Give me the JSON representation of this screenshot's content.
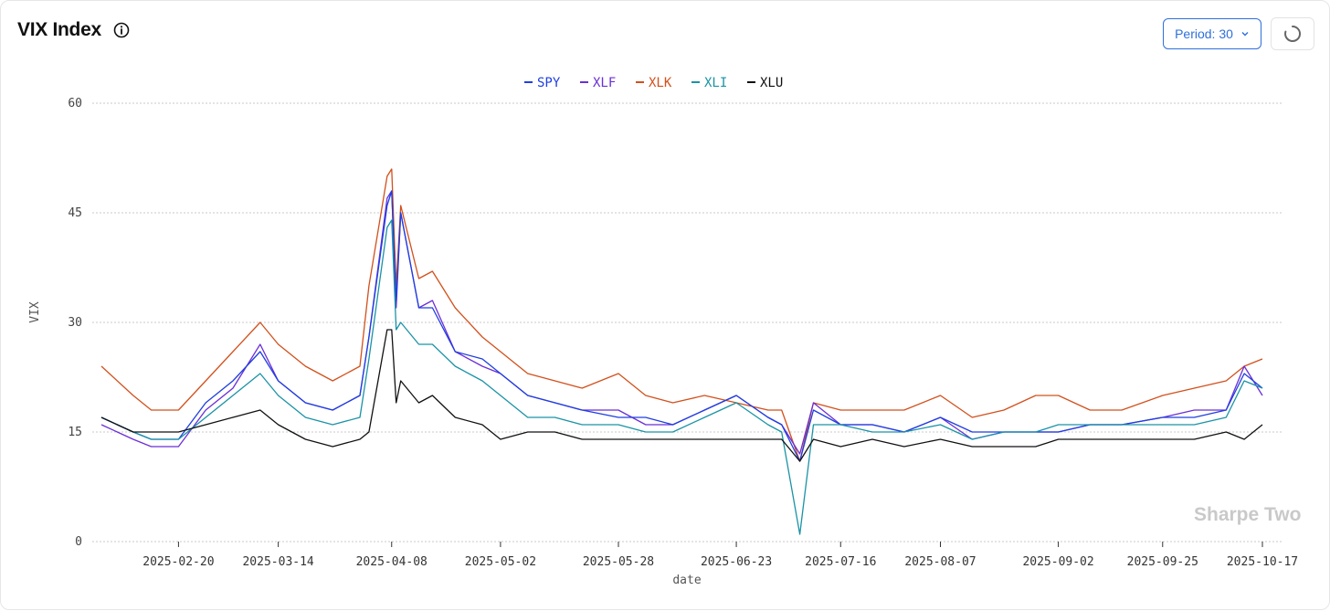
{
  "header": {
    "title": "VIX Index"
  },
  "controls": {
    "period_label": "Period: 30"
  },
  "watermark": "Sharpe Two",
  "colors": {
    "SPY": "#1f3fe0",
    "XLF": "#6b2fd6",
    "XLK": "#d2501c",
    "XLI": "#1a93a6",
    "XLU": "#111111",
    "accent": "#2f6fdc"
  },
  "chart_data": {
    "type": "line",
    "title": "VIX Index",
    "xlabel": "date",
    "ylabel": "VIX",
    "ylim": [
      0,
      60
    ],
    "yticks": [
      0,
      15,
      30,
      45,
      60
    ],
    "grid": true,
    "legend": "top-center",
    "x_ticks": [
      "2025-02-20",
      "2025-03-14",
      "2025-04-08",
      "2025-05-02",
      "2025-05-28",
      "2025-06-23",
      "2025-07-16",
      "2025-08-07",
      "2025-09-02",
      "2025-09-25",
      "2025-10-17"
    ],
    "x": [
      "2025-02-03",
      "2025-02-10",
      "2025-02-14",
      "2025-02-20",
      "2025-02-26",
      "2025-03-04",
      "2025-03-10",
      "2025-03-14",
      "2025-03-20",
      "2025-03-26",
      "2025-04-01",
      "2025-04-03",
      "2025-04-07",
      "2025-04-08",
      "2025-04-09",
      "2025-04-10",
      "2025-04-14",
      "2025-04-17",
      "2025-04-22",
      "2025-04-28",
      "2025-05-02",
      "2025-05-08",
      "2025-05-14",
      "2025-05-20",
      "2025-05-28",
      "2025-06-03",
      "2025-06-09",
      "2025-06-16",
      "2025-06-23",
      "2025-06-30",
      "2025-07-03",
      "2025-07-07",
      "2025-07-10",
      "2025-07-16",
      "2025-07-23",
      "2025-07-30",
      "2025-08-07",
      "2025-08-14",
      "2025-08-21",
      "2025-08-28",
      "2025-09-02",
      "2025-09-09",
      "2025-09-16",
      "2025-09-25",
      "2025-10-02",
      "2025-10-09",
      "2025-10-13",
      "2025-10-17"
    ],
    "series": [
      {
        "name": "SPY",
        "values": [
          17,
          15,
          14,
          14,
          19,
          22,
          26,
          22,
          19,
          18,
          20,
          28,
          46,
          48,
          33,
          45,
          32,
          32,
          26,
          25,
          23,
          20,
          19,
          18,
          17,
          17,
          16,
          18,
          20,
          17,
          16,
          11,
          18,
          16,
          16,
          15,
          17,
          15,
          15,
          15,
          15,
          16,
          16,
          17,
          17,
          18,
          23,
          21
        ]
      },
      {
        "name": "XLF",
        "values": [
          16,
          14,
          13,
          13,
          18,
          21,
          27,
          22,
          19,
          18,
          20,
          28,
          47,
          48,
          32,
          45,
          32,
          33,
          26,
          24,
          23,
          20,
          19,
          18,
          18,
          16,
          16,
          18,
          20,
          17,
          16,
          12,
          19,
          16,
          16,
          15,
          17,
          14,
          15,
          15,
          15,
          16,
          16,
          17,
          18,
          18,
          24,
          20
        ]
      },
      {
        "name": "XLK",
        "values": [
          24,
          20,
          18,
          18,
          22,
          26,
          30,
          27,
          24,
          22,
          24,
          35,
          50,
          51,
          35,
          46,
          36,
          37,
          32,
          28,
          26,
          23,
          22,
          21,
          23,
          20,
          19,
          20,
          19,
          18,
          18,
          11,
          19,
          18,
          18,
          18,
          20,
          17,
          18,
          20,
          20,
          18,
          18,
          20,
          21,
          22,
          24,
          25
        ]
      },
      {
        "name": "XLI",
        "values": [
          17,
          15,
          14,
          14,
          17,
          20,
          23,
          20,
          17,
          16,
          17,
          25,
          43,
          44,
          29,
          30,
          27,
          27,
          24,
          22,
          20,
          17,
          17,
          16,
          16,
          15,
          15,
          17,
          19,
          16,
          15,
          1,
          16,
          16,
          15,
          15,
          16,
          14,
          15,
          15,
          16,
          16,
          16,
          16,
          16,
          17,
          22,
          21
        ]
      },
      {
        "name": "XLU",
        "values": [
          17,
          15,
          15,
          15,
          16,
          17,
          18,
          16,
          14,
          13,
          14,
          15,
          29,
          29,
          19,
          22,
          19,
          20,
          17,
          16,
          14,
          15,
          15,
          14,
          14,
          14,
          14,
          14,
          14,
          14,
          14,
          11,
          14,
          13,
          14,
          13,
          14,
          13,
          13,
          13,
          14,
          14,
          14,
          14,
          14,
          15,
          14,
          16
        ]
      }
    ]
  }
}
